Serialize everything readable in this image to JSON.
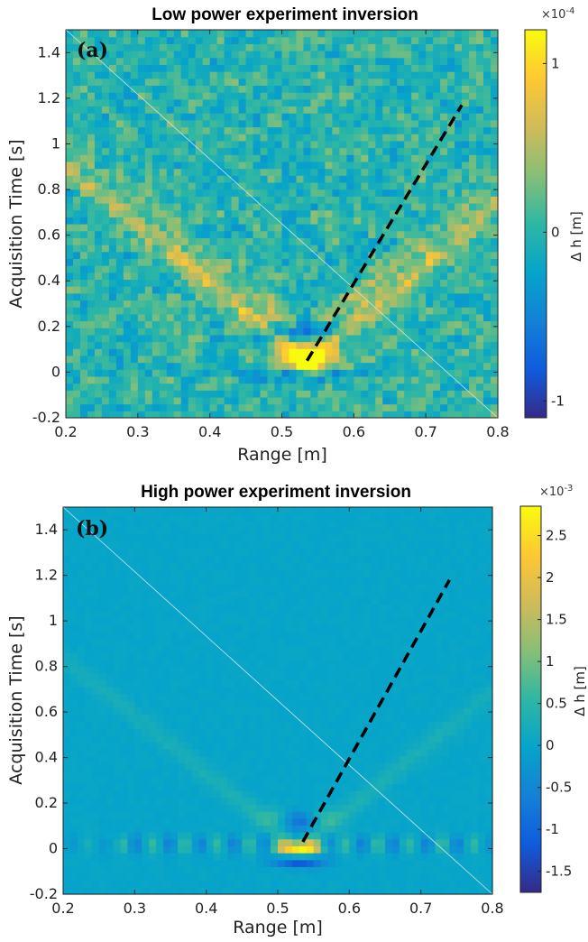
{
  "chart_data": [
    {
      "type": "heatmap",
      "title": "Low power experiment inversion",
      "panel_label": "(a)",
      "xlabel": "Range [m]",
      "ylabel": "Acquisition Time [s]",
      "xlim": [
        0.2,
        0.8
      ],
      "ylim": [
        -0.2,
        1.5
      ],
      "xticks": [
        "0.2",
        "0.3",
        "0.4",
        "0.5",
        "0.6",
        "0.7",
        "0.8"
      ],
      "xtick_values": [
        0.2,
        0.3,
        0.4,
        0.5,
        0.6,
        0.7,
        0.8
      ],
      "yticks": [
        "-0.2",
        "0",
        "0.2",
        "0.4",
        "0.6",
        "0.8",
        "1",
        "1.2",
        "1.4"
      ],
      "ytick_values": [
        -0.2,
        0,
        0.2,
        0.4,
        0.6,
        0.8,
        1.0,
        1.2,
        1.4
      ],
      "colorbar": {
        "label": "Δ h [m]",
        "exponent": "×10^-4",
        "exponent_text": "×10",
        "exponent_power": "-4",
        "range": [
          -1.1,
          1.2
        ],
        "ticks": [
          "-1",
          "0",
          "1"
        ],
        "tick_values": [
          -1,
          0,
          1
        ]
      },
      "dashed_line": {
        "x": [
          0.535,
          0.75
        ],
        "y": [
          0.05,
          1.17
        ]
      },
      "pattern": {
        "vertex_x": 0.535,
        "vertex_y": 0.05,
        "peak_value": 1.1,
        "min_value": -1.0,
        "noise": 0.25
      }
    },
    {
      "type": "heatmap",
      "title": "High power experiment inversion",
      "panel_label": "(b)",
      "xlabel": "Range [m]",
      "ylabel": "Acquisition Time [s]",
      "xlim": [
        0.2,
        0.8
      ],
      "ylim": [
        -0.2,
        1.5
      ],
      "xticks": [
        "0.2",
        "0.3",
        "0.4",
        "0.5",
        "0.6",
        "0.7",
        "0.8"
      ],
      "xtick_values": [
        0.2,
        0.3,
        0.4,
        0.5,
        0.6,
        0.7,
        0.8
      ],
      "yticks": [
        "-0.2",
        "0",
        "0.2",
        "0.4",
        "0.6",
        "0.8",
        "1",
        "1.2",
        "1.4"
      ],
      "ytick_values": [
        -0.2,
        0,
        0.2,
        0.4,
        0.6,
        0.8,
        1.0,
        1.2,
        1.4
      ],
      "colorbar": {
        "label": "Δ h [m]",
        "exponent": "×10^-3",
        "exponent_text": "×10",
        "exponent_power": "-3",
        "range": [
          -1.75,
          2.85
        ],
        "ticks": [
          "-1.5",
          "-1",
          "-0.5",
          "0",
          "0.5",
          "1",
          "1.5",
          "2",
          "2.5"
        ],
        "tick_values": [
          -1.5,
          -1,
          -0.5,
          0,
          0.5,
          1,
          1.5,
          2,
          2.5
        ]
      },
      "dashed_line": {
        "x": [
          0.535,
          0.74
        ],
        "y": [
          0.03,
          1.18
        ]
      },
      "pattern": {
        "vertex_x": 0.53,
        "vertex_y": 0.0,
        "peak_value": 2.8,
        "min_value": -1.7,
        "noise": 0.05
      }
    }
  ],
  "colors": {
    "parula": [
      "#352a87",
      "#0f5cdd",
      "#1481d6",
      "#06a4ca",
      "#2eb7a4",
      "#87bf77",
      "#d1bb59",
      "#fec832",
      "#f9fb0e"
    ],
    "dashed_line": "#000000"
  }
}
